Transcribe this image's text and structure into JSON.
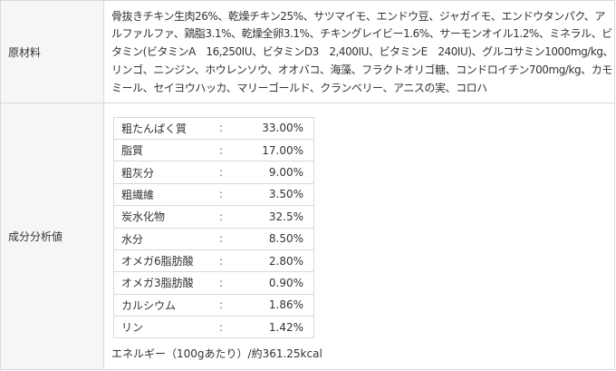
{
  "ingredients": {
    "label": "原材料",
    "text": "骨抜きチキン生肉26%、乾燥チキン25%、サツマイモ、エンドウ豆、ジャガイモ、エンドウタンパク、アルファルファ、鶏脂3.1%、乾燥全卵3.1%、チキングレイビー1.6%、サーモンオイル1.2%、ミネラル、ビタミン(ビタミンA　16,250IU、ビタミンD3　2,400IU、ビタミンE　240IU)、グルコサミン1000mg/kg、リンゴ、ニンジン、ホウレンソウ、オオバコ、海藻、フラクトオリゴ糖、コンドロイチン700mg/kg、カモミール、セイヨウハッカ、マリーゴールド、クランベリー、アニスの実、コロハ"
  },
  "analysis": {
    "label": "成分分析値",
    "rows": [
      {
        "name": "粗たんぱく質",
        "sep": ":",
        "value": "33.00%"
      },
      {
        "name": "脂質",
        "sep": ":",
        "value": "17.00%"
      },
      {
        "name": "粗灰分",
        "sep": ":",
        "value": "9.00%"
      },
      {
        "name": "粗繊維",
        "sep": ":",
        "value": "3.50%"
      },
      {
        "name": "炭水化物",
        "sep": ":",
        "value": "32.5%"
      },
      {
        "name": "水分",
        "sep": ":",
        "value": "8.50%"
      },
      {
        "name": "オメガ6脂肪酸",
        "sep": ":",
        "value": "2.80%"
      },
      {
        "name": "オメガ3脂肪酸",
        "sep": ":",
        "value": "0.90%"
      },
      {
        "name": "カルシウム",
        "sep": ":",
        "value": "1.86%"
      },
      {
        "name": "リン",
        "sep": ":",
        "value": "1.42%"
      }
    ],
    "energy": "エネルギー（100gあたり）/約361.25kcal"
  }
}
